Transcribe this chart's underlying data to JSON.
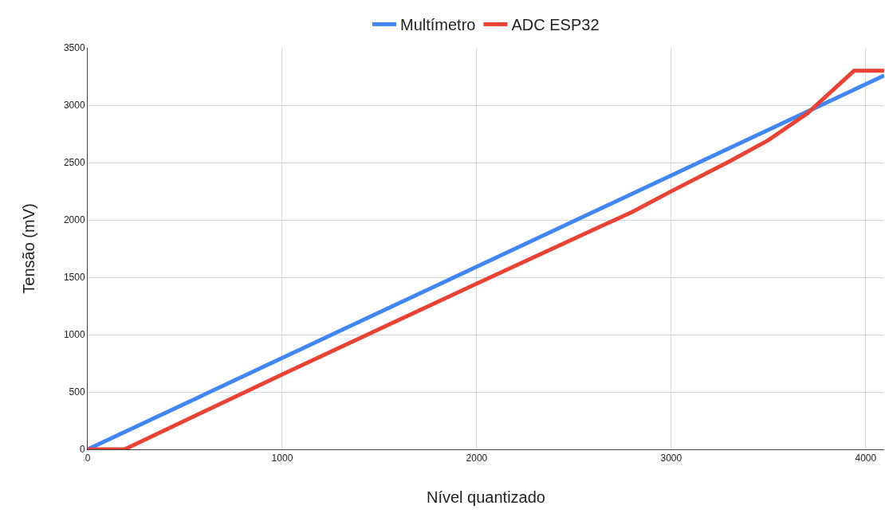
{
  "chart_data": {
    "type": "line",
    "xlabel": "Nível quantizado",
    "ylabel": "Tensão (mV)",
    "xlim": [
      0,
      4095
    ],
    "xticks": [
      0,
      1000,
      2000,
      3000,
      4000
    ],
    "ylim": [
      0,
      3500
    ],
    "yticks": [
      0,
      500,
      1000,
      1500,
      2000,
      2500,
      3000,
      3500
    ],
    "grid": true,
    "legend": "top",
    "marker": "none",
    "line_style": "solid",
    "series": [
      {
        "name": "Multímetro",
        "color": "#4285f4",
        "x": [
          0,
          4095
        ],
        "values": [
          0,
          3259
        ]
      },
      {
        "name": "ADC ESP32",
        "color": "#ea4335",
        "x": [
          0,
          190,
          1000,
          2000,
          2800,
          3000,
          3300,
          3500,
          3700,
          3940,
          4095
        ],
        "values": [
          0,
          0,
          653,
          1444,
          2070,
          2249,
          2510,
          2695,
          2929,
          3300,
          3300
        ]
      }
    ]
  }
}
